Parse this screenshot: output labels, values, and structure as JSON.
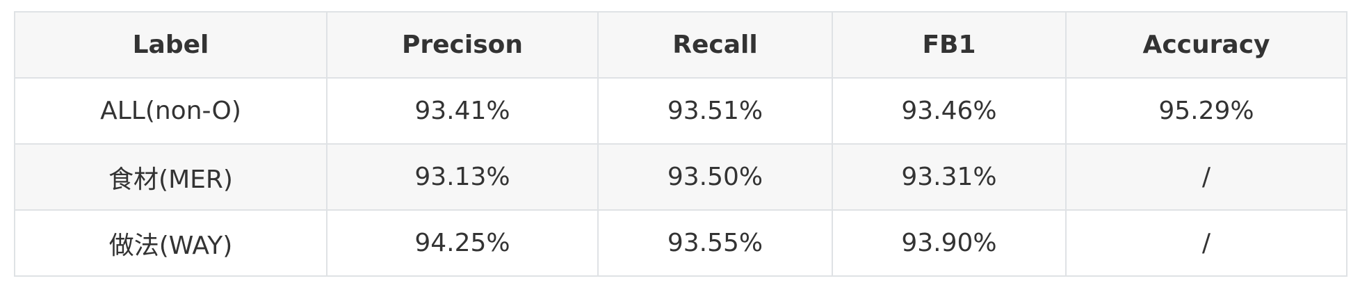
{
  "table": {
    "headers": [
      "Label",
      "Precison",
      "Recall",
      "FB1",
      "Accuracy"
    ],
    "rows": [
      [
        "ALL(non-O)",
        "93.41%",
        "93.51%",
        "93.46%",
        "95.29%"
      ],
      [
        "食材(MER)",
        "93.13%",
        "93.50%",
        "93.31%",
        "/"
      ],
      [
        "做法(WAY)",
        "94.25%",
        "93.55%",
        "93.90%",
        "/"
      ]
    ]
  }
}
